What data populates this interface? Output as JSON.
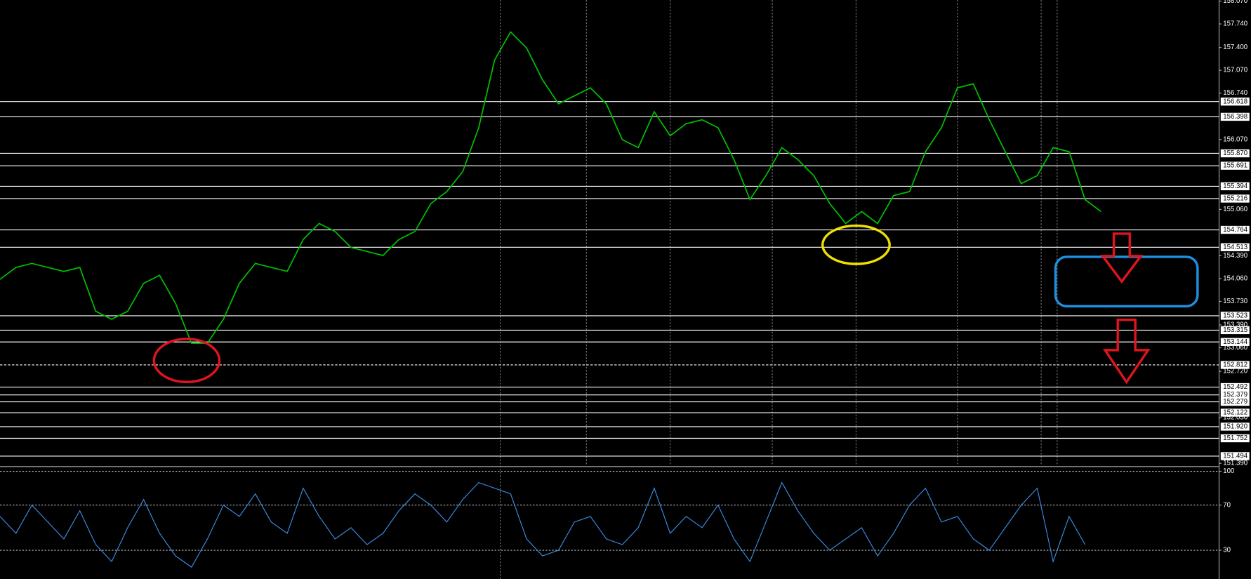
{
  "chart_data": [
    {
      "type": "line",
      "color": "#00c000",
      "values": [
        154.048,
        154.221,
        154.279,
        154.221,
        154.164,
        154.221,
        153.587,
        153.472,
        153.587,
        153.991,
        154.106,
        153.702,
        153.126,
        153.126,
        153.472,
        153.991,
        154.279,
        154.221,
        154.164,
        154.625,
        154.856,
        154.74,
        154.51,
        154.452,
        154.394,
        154.625,
        154.74,
        155.144,
        155.317,
        155.606,
        156.24,
        157.22,
        157.624,
        157.393,
        156.932,
        156.586,
        156.701,
        156.817,
        156.586,
        156.067,
        155.952,
        156.471,
        156.125,
        156.298,
        156.355,
        156.24,
        155.779,
        155.202,
        155.548,
        155.952,
        155.779,
        155.548,
        155.144,
        154.856,
        155.029,
        154.856,
        155.26,
        155.317,
        155.894,
        156.24,
        156.817,
        156.874,
        156.355,
        155.894,
        155.433,
        155.548,
        155.952,
        155.894,
        155.202,
        155.029
      ],
      "ylim": [
        151.355,
        158.086
      ],
      "yticks": [
        {
          "value": 158.07,
          "label": "158.070"
        },
        {
          "value": 157.74,
          "label": "157.740"
        },
        {
          "value": 157.4,
          "label": "157.400"
        },
        {
          "value": 157.07,
          "label": "157.070"
        },
        {
          "value": 156.74,
          "label": "156.740"
        },
        {
          "value": 156.07,
          "label": "156.070"
        },
        {
          "value": 155.06,
          "label": "155.060"
        },
        {
          "value": 154.39,
          "label": "154.390"
        },
        {
          "value": 154.06,
          "label": "154.060"
        },
        {
          "value": 153.73,
          "label": "153.730"
        },
        {
          "value": 153.39,
          "label": "153.390"
        },
        {
          "value": 153.06,
          "label": "153.060"
        },
        {
          "value": 152.72,
          "label": "152.720"
        },
        {
          "value": 152.05,
          "label": "152.050"
        },
        {
          "value": 151.39,
          "label": "151.390"
        }
      ],
      "levels": [
        {
          "value": 156.618,
          "label": "156.618"
        },
        {
          "value": 156.398,
          "label": "156.398"
        },
        {
          "value": 155.87,
          "label": "155.870"
        },
        {
          "value": 155.691,
          "label": "155.691"
        },
        {
          "value": 155.394,
          "label": "155.394"
        },
        {
          "value": 155.216,
          "label": "155.216"
        },
        {
          "value": 154.764,
          "label": "154.764"
        },
        {
          "value": 154.513,
          "label": "154.513"
        },
        {
          "value": 153.523,
          "label": "153.523"
        },
        {
          "value": 153.315,
          "label": "153.315"
        },
        {
          "value": 153.144,
          "label": "153.144"
        },
        {
          "value": 152.812,
          "label": "152.812",
          "line_style": "dashed"
        },
        {
          "value": 152.492,
          "label": "152.492"
        },
        {
          "value": 152.379,
          "label": "152.379"
        },
        {
          "value": 152.279,
          "label": "152.279"
        },
        {
          "value": 152.122,
          "label": "152.122"
        },
        {
          "value": 151.92,
          "label": "151.920"
        },
        {
          "value": 151.752,
          "label": "151.752"
        },
        {
          "value": 151.494,
          "label": "151.494"
        }
      ]
    },
    {
      "type": "line",
      "color": "#3b8ee6",
      "values": [
        60,
        45,
        70,
        55,
        40,
        65,
        35,
        20,
        50,
        75,
        45,
        25,
        15,
        40,
        70,
        60,
        80,
        55,
        45,
        85,
        60,
        40,
        50,
        35,
        45,
        65,
        80,
        70,
        55,
        75,
        90,
        85,
        80,
        40,
        25,
        30,
        55,
        60,
        40,
        35,
        50,
        85,
        45,
        60,
        50,
        70,
        40,
        20,
        55,
        90,
        65,
        45,
        30,
        40,
        50,
        25,
        45,
        70,
        85,
        55,
        60,
        40,
        30,
        50,
        70,
        85,
        20,
        60,
        35
      ],
      "ylim": [
        4.5,
        103.5
      ],
      "yticks": [
        100,
        70,
        30
      ],
      "grid": true
    }
  ]
}
